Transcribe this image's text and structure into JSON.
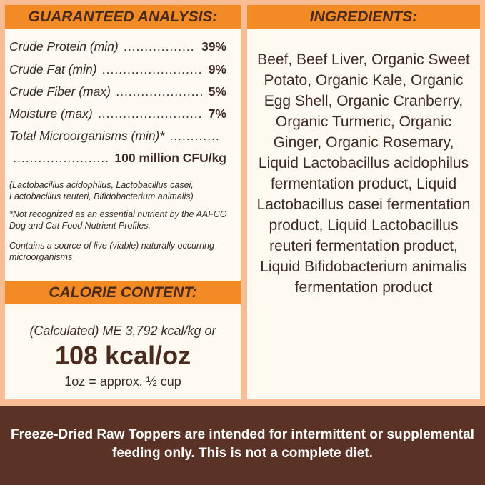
{
  "analysis": {
    "title": "GUARANTEED ANALYSIS:",
    "rows": [
      {
        "label": "Crude Protein (min)",
        "value": "39%"
      },
      {
        "label": "Crude Fat (min)",
        "value": "9%"
      },
      {
        "label": "Crude Fiber (max)",
        "value": "5%"
      },
      {
        "label": "Moisture (max)",
        "value": "7%"
      }
    ],
    "micro_label": "Total Microorganisms (min)*",
    "micro_value": "100 million CFU/kg",
    "strains": "(Lactobacillus acidophilus, Lactobacillus casei, Lactobacillus reuteri, Bifidobacterium animalis)",
    "footnote": "*Not recognized as an essential nutrient by the AAFCO Dog and Cat Food Nutrient Profiles.",
    "live_note": "Contains a source of live (viable) naturally occurring microorganisms"
  },
  "calorie": {
    "title": "CALORIE CONTENT:",
    "calculated": "(Calculated) ME 3,792 kcal/kg or",
    "per_oz": "108 kcal/oz",
    "serving": "1oz = approx. ½ cup"
  },
  "ingredients": {
    "title": "INGREDIENTS:",
    "text": "Beef, Beef Liver, Organic Sweet Potato, Organic Kale, Organic Egg Shell, Organic Cranberry, Organic Turmeric, Organic Ginger, Organic Rosemary, Liquid Lactobacillus acidophilus fermentation product, Liquid Lactobacillus casei fermentation product, Liquid Lactobacillus reuteri fermentation product, Liquid Bifidobacterium animalis fermentation product"
  },
  "footer": {
    "text": "Freeze-Dried Raw Toppers are intended for intermittent or supplemental feeding only. This is not a complete diet."
  },
  "colors": {
    "header": "#f28a25",
    "panel": "#fefaf1",
    "background": "#f8bd93",
    "footer": "#5a3326"
  }
}
